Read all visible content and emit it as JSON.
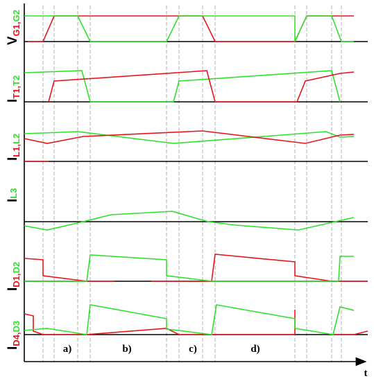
{
  "rows": [
    {
      "symbol": "V",
      "sub1": "G1,",
      "sub2": "G2"
    },
    {
      "symbol": "I",
      "sub1": "T1,",
      "sub2": "T2"
    },
    {
      "symbol": "I",
      "sub1": "L1,",
      "sub2": "L2"
    },
    {
      "symbol": "I",
      "sub1": "",
      "sub2": "L3"
    },
    {
      "symbol": "I",
      "sub1": "D1,",
      "sub2": "D2"
    },
    {
      "symbol": "I",
      "sub1": "D4,",
      "sub2": "D3"
    }
  ],
  "intervals": [
    "a)",
    "b)",
    "c)",
    "d)"
  ],
  "axis_label": "t"
}
